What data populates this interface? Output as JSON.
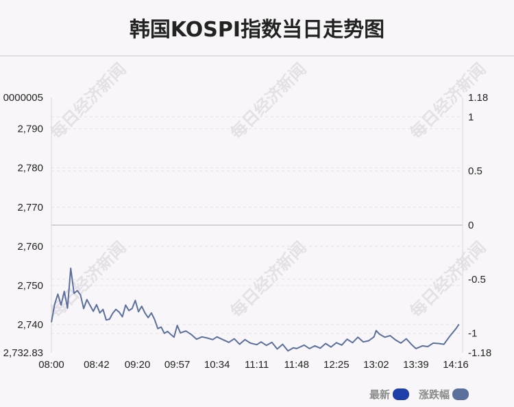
{
  "title": "韩国KOSPI指数当日走势图",
  "watermark_text": "每日经济新闻",
  "legend": {
    "latest_label": "最新",
    "change_label": "涨跌幅",
    "latest_color": "#1e3ea8",
    "change_color": "#5a6f9c"
  },
  "chart_data": {
    "type": "line",
    "x_ticks": [
      "08:00",
      "08:42",
      "09:20",
      "09:57",
      "10:34",
      "11:11",
      "11:48",
      "12:25",
      "13:02",
      "13:39",
      "14:16"
    ],
    "y_left_ticks": [
      "0000005",
      "2,790",
      "2,780",
      "2,770",
      "2,760",
      "2,750",
      "2,740",
      "2,732.83"
    ],
    "y_right_ticks": [
      "1.18",
      "1",
      "0.5",
      "0",
      "-0.5",
      "-1",
      "-1.18"
    ],
    "y_left_range": [
      2732.83,
      2797.98
    ],
    "y_right_range": [
      -1.18,
      1.18
    ],
    "base_value": 2765.4,
    "series": [
      {
        "x": [
          "08:00",
          "08:03",
          "08:06",
          "08:09",
          "08:12",
          "08:15",
          "08:18",
          "08:21",
          "08:24",
          "08:27",
          "08:30",
          "08:33",
          "08:36",
          "08:39",
          "08:42",
          "08:45",
          "08:48",
          "08:51",
          "08:54",
          "08:57",
          "09:00",
          "09:03",
          "09:06",
          "09:09",
          "09:12",
          "09:15",
          "09:18",
          "09:21",
          "09:24",
          "09:27",
          "09:30",
          "09:33",
          "09:36",
          "09:39",
          "09:42",
          "09:45",
          "09:48",
          "09:51",
          "09:54",
          "09:57",
          "10:00",
          "10:05",
          "10:10",
          "10:15",
          "10:20",
          "10:25",
          "10:30",
          "10:34",
          "10:40",
          "10:45",
          "10:50",
          "10:55",
          "11:00",
          "11:05",
          "11:11",
          "11:15",
          "11:20",
          "11:25",
          "11:30",
          "11:35",
          "11:40",
          "11:45",
          "11:48",
          "11:55",
          "12:00",
          "12:05",
          "12:10",
          "12:15",
          "12:20",
          "12:25",
          "12:30",
          "12:35",
          "12:40",
          "12:45",
          "12:50",
          "12:55",
          "13:00",
          "13:02",
          "13:05",
          "13:10",
          "13:15",
          "13:20",
          "13:25",
          "13:30",
          "13:35",
          "13:39",
          "13:45",
          "13:50",
          "13:55",
          "14:00",
          "14:05",
          "14:10",
          "14:16",
          "14:19"
        ],
        "values": [
          2740.6,
          2745.2,
          2747.8,
          2745.0,
          2748.5,
          2744.2,
          2754.4,
          2748.0,
          2748.7,
          2747.6,
          2744.1,
          2746.4,
          2744.9,
          2743.4,
          2745.1,
          2743.0,
          2743.9,
          2741.2,
          2741.4,
          2742.9,
          2743.9,
          2743.2,
          2742.0,
          2745.0,
          2743.6,
          2744.1,
          2746.2,
          2743.3,
          2744.7,
          2743.0,
          2741.8,
          2743.0,
          2741.3,
          2739.0,
          2739.4,
          2737.8,
          2738.3,
          2737.5,
          2736.8,
          2739.8,
          2737.9,
          2738.4,
          2737.5,
          2736.3,
          2736.9,
          2736.6,
          2736.2,
          2736.9,
          2736.1,
          2735.5,
          2736.4,
          2735.0,
          2736.2,
          2735.3,
          2734.9,
          2735.6,
          2734.7,
          2735.5,
          2733.8,
          2735.0,
          2733.3,
          2734.1,
          2733.9,
          2734.8,
          2733.9,
          2734.6,
          2734.0,
          2735.2,
          2734.3,
          2735.4,
          2734.8,
          2736.3,
          2735.4,
          2736.8,
          2735.6,
          2735.9,
          2736.9,
          2738.5,
          2737.6,
          2736.8,
          2737.2,
          2736.1,
          2735.3,
          2736.4,
          2734.9,
          2733.9,
          2734.6,
          2734.4,
          2735.3,
          2735.2,
          2735.0,
          2736.9,
          2738.9,
          2740.1
        ]
      }
    ],
    "grid": "dashed horizontal",
    "legend_position": "bottom-right"
  }
}
